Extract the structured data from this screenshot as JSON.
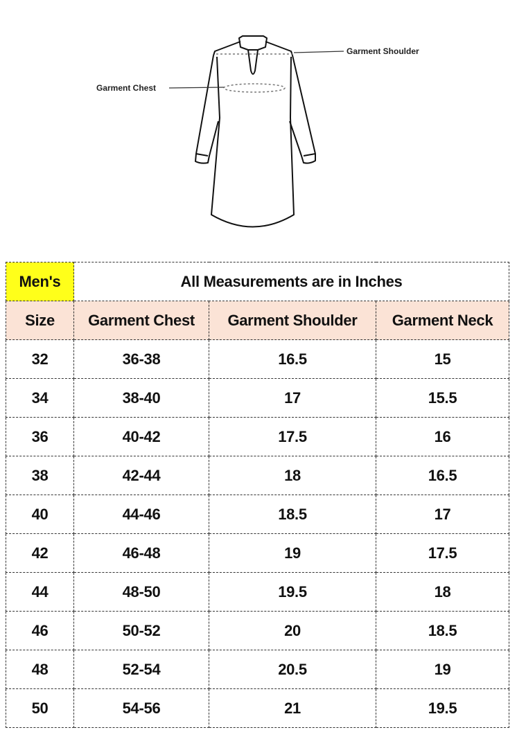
{
  "illustration": {
    "labels": {
      "shoulder": "Garment Shoulder",
      "chest": "Garment Chest"
    }
  },
  "table": {
    "corner_label": "Men's",
    "title": "All Measurements are in Inches",
    "headers": [
      "Size",
      "Garment Chest",
      "Garment Shoulder",
      "Garment Neck"
    ],
    "rows": [
      [
        "32",
        "36-38",
        "16.5",
        "15"
      ],
      [
        "34",
        "38-40",
        "17",
        "15.5"
      ],
      [
        "36",
        "40-42",
        "17.5",
        "16"
      ],
      [
        "38",
        "42-44",
        "18",
        "16.5"
      ],
      [
        "40",
        "44-46",
        "18.5",
        "17"
      ],
      [
        "42",
        "46-48",
        "19",
        "17.5"
      ],
      [
        "44",
        "48-50",
        "19.5",
        "18"
      ],
      [
        "46",
        "50-52",
        "20",
        "18.5"
      ],
      [
        "48",
        "52-54",
        "20.5",
        "19"
      ],
      [
        "50",
        "54-56",
        "21",
        "19.5"
      ]
    ],
    "colors": {
      "corner_bg": "#ffff1a",
      "header_bg": "#fbe3d6"
    }
  }
}
